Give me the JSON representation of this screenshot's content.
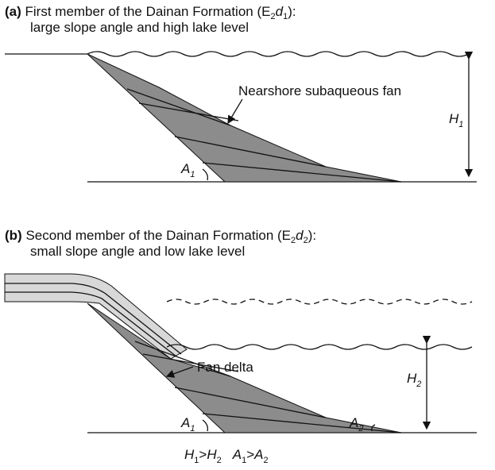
{
  "panel_a": {
    "label": "(a)",
    "title": [
      "First member of the Dainan Formation (E",
      "2",
      "d",
      "1",
      "):"
    ],
    "subtitle": "large slope angle and high lake level",
    "fan_label": "Nearshore subaqueous fan",
    "height": [
      "H",
      "1"
    ],
    "angle": [
      "A",
      "1"
    ]
  },
  "panel_b": {
    "label": "(b)",
    "title": [
      "Second member of the Dainan Formation (E",
      "2",
      "d",
      "2",
      "):"
    ],
    "subtitle": "small  slope angle and low lake level",
    "fan_label": "Fan delta",
    "height": [
      "H",
      "2"
    ],
    "angle1": [
      "A",
      "1"
    ],
    "angle2": [
      "A",
      "2"
    ]
  },
  "relation": [
    "H",
    "1",
    ">",
    "H",
    "2",
    "A",
    "1",
    ">",
    "A",
    "2"
  ]
}
